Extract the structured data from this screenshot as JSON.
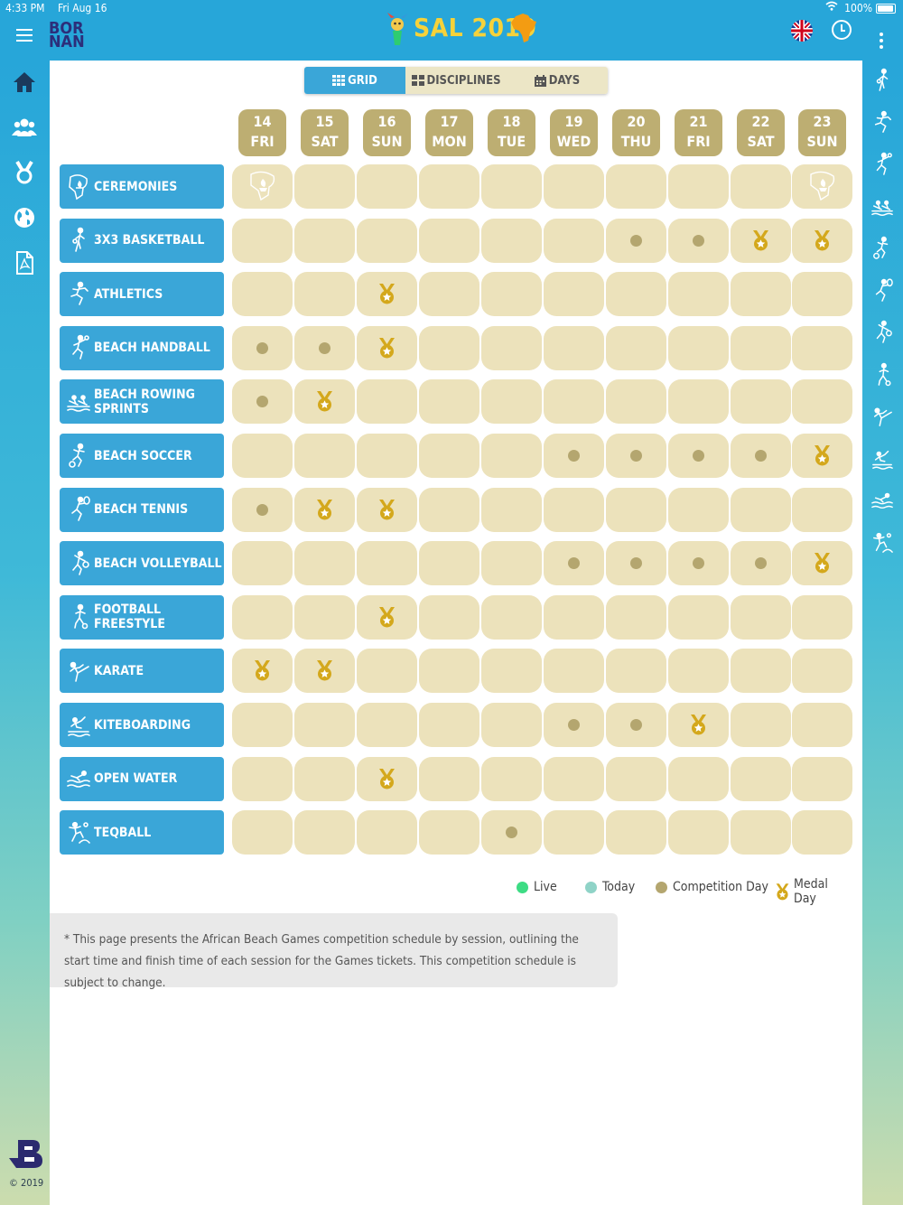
{
  "status_bar": {
    "time": "4:33 PM",
    "date": "Fri Aug 16",
    "battery": "100%"
  },
  "header": {
    "title": "SAL 2019",
    "logo_text_top": "BOR",
    "logo_text_bottom": "NAN"
  },
  "tabs": [
    {
      "label": "GRID",
      "icon": "grid-icon",
      "active": true
    },
    {
      "label": "DISCIPLINES",
      "icon": "list-icon",
      "active": false
    },
    {
      "label": "DAYS",
      "icon": "calendar-icon",
      "active": false
    }
  ],
  "left_nav": [
    "home-icon",
    "people-icon",
    "medal-icon",
    "globe-icon",
    "pdf-icon"
  ],
  "right_nav": [
    "basketball-icon",
    "athletics-icon",
    "handball-icon",
    "rowing-icon",
    "soccer-icon",
    "tennis-icon",
    "volleyball-icon",
    "freestyle-icon",
    "karate-icon",
    "kiteboarding-icon",
    "open-water-icon",
    "teqball-icon"
  ],
  "days": [
    {
      "num": "14",
      "dow": "FRI"
    },
    {
      "num": "15",
      "dow": "SAT"
    },
    {
      "num": "16",
      "dow": "SUN"
    },
    {
      "num": "17",
      "dow": "MON"
    },
    {
      "num": "18",
      "dow": "TUE"
    },
    {
      "num": "19",
      "dow": "WED"
    },
    {
      "num": "20",
      "dow": "THU"
    },
    {
      "num": "21",
      "dow": "FRI"
    },
    {
      "num": "22",
      "dow": "SAT"
    },
    {
      "num": "23",
      "dow": "SUN"
    }
  ],
  "disciplines": [
    {
      "name": "CEREMONIES",
      "icon": "ceremony-icon",
      "schedule": [
        "C",
        "",
        "",
        "",
        "",
        "",
        "",
        "",
        "",
        "C"
      ]
    },
    {
      "name": "3X3 BASKETBALL",
      "icon": "basketball-icon",
      "schedule": [
        "",
        "",
        "",
        "",
        "",
        "",
        "D",
        "D",
        "M",
        "M"
      ]
    },
    {
      "name": "ATHLETICS",
      "icon": "athletics-icon",
      "schedule": [
        "",
        "",
        "M",
        "",
        "",
        "",
        "",
        "",
        "",
        ""
      ]
    },
    {
      "name": "BEACH HANDBALL",
      "icon": "handball-icon",
      "schedule": [
        "D",
        "D",
        "M",
        "",
        "",
        "",
        "",
        "",
        "",
        ""
      ]
    },
    {
      "name": "BEACH ROWING SPRINTS",
      "icon": "rowing-icon",
      "schedule": [
        "D",
        "M",
        "",
        "",
        "",
        "",
        "",
        "",
        "",
        ""
      ]
    },
    {
      "name": "BEACH SOCCER",
      "icon": "soccer-icon",
      "schedule": [
        "",
        "",
        "",
        "",
        "",
        "D",
        "D",
        "D",
        "D",
        "M"
      ]
    },
    {
      "name": "BEACH TENNIS",
      "icon": "tennis-icon",
      "schedule": [
        "D",
        "M",
        "M",
        "",
        "",
        "",
        "",
        "",
        "",
        ""
      ]
    },
    {
      "name": "BEACH VOLLEYBALL",
      "icon": "volleyball-icon",
      "schedule": [
        "",
        "",
        "",
        "",
        "",
        "D",
        "D",
        "D",
        "D",
        "M"
      ]
    },
    {
      "name": "FOOTBALL FREESTYLE",
      "icon": "freestyle-icon",
      "schedule": [
        "",
        "",
        "M",
        "",
        "",
        "",
        "",
        "",
        "",
        ""
      ]
    },
    {
      "name": "KARATE",
      "icon": "karate-icon",
      "schedule": [
        "M",
        "M",
        "",
        "",
        "",
        "",
        "",
        "",
        "",
        ""
      ]
    },
    {
      "name": "KITEBOARDING",
      "icon": "kiteboarding-icon",
      "schedule": [
        "",
        "",
        "",
        "",
        "",
        "D",
        "D",
        "M",
        "",
        ""
      ]
    },
    {
      "name": "OPEN WATER",
      "icon": "open-water-icon",
      "schedule": [
        "",
        "",
        "M",
        "",
        "",
        "",
        "",
        "",
        "",
        ""
      ]
    },
    {
      "name": "TEQBALL",
      "icon": "teqball-icon",
      "schedule": [
        "",
        "",
        "",
        "",
        "D",
        "",
        "",
        "",
        "",
        ""
      ]
    }
  ],
  "legend": {
    "live": "Live",
    "today": "Today",
    "competition": "Competition Day",
    "medal": "Medal Day"
  },
  "colors": {
    "live": "#3ddc84",
    "today": "#8fd3c7",
    "competition": "#b4a66f",
    "medal": "#d4a81c",
    "accent": "#3aa6d8",
    "cell": "#ece2bb",
    "day_header": "#bdae72"
  },
  "note": "* This page presents the African Beach Games competition schedule by session, outlining the start time and finish time of each session for the Games tickets. This competition schedule is subject to change.",
  "copyright": "© 2019"
}
